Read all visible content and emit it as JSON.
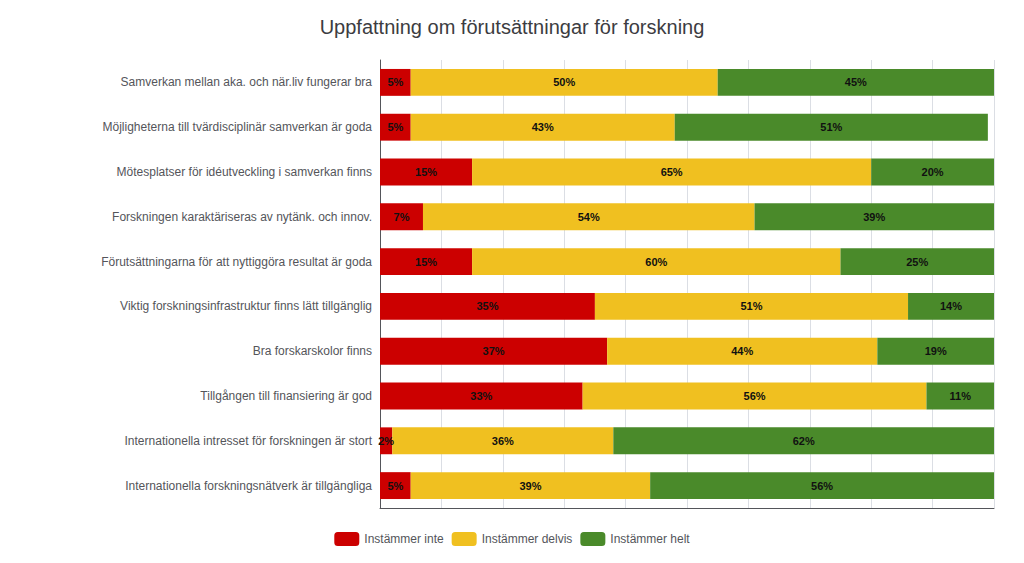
{
  "chart_data": {
    "type": "bar",
    "orientation": "horizontal",
    "stacked": true,
    "title": "Uppfattning om förutsättningar för forskning",
    "categories": [
      "Internationella forskningsnätverk är tillgängliga",
      "Internationella intresset för forskningen är stort",
      "Tillgången till finansiering är god",
      "Bra forskarskolor finns",
      "Viktig forskningsinfrastruktur finns lätt tillgänglig",
      "Förutsättningarna för att nyttiggöra resultat är goda",
      "Forskningen karaktäriseras av nytänk. och innov.",
      "Mötesplatser för idéutveckling i samverkan finns",
      "Möjligheterna till tvärdisciplinär samverkan är goda",
      "Samverkan mellan aka. och när.liv fungerar bra"
    ],
    "series": [
      {
        "name": "Instämmer inte",
        "color": "#cc0000",
        "values": [
          5,
          2,
          33,
          37,
          35,
          15,
          7,
          15,
          5,
          5
        ],
        "value_labels": [
          "5%",
          "2%",
          "33%",
          "37%",
          "35%",
          "15%",
          "7%",
          "15%",
          "5%",
          "5%"
        ]
      },
      {
        "name": "Instämmer delvis",
        "color": "#f0c020",
        "values": [
          39,
          36,
          56,
          44,
          51,
          60,
          54,
          65,
          43,
          50
        ],
        "value_labels": [
          "39%",
          "36%",
          "56%",
          "44%",
          "51%",
          "60%",
          "54%",
          "65%",
          "43%",
          "50%"
        ]
      },
      {
        "name": "Instämmer helt",
        "color": "#4a8a2a",
        "values": [
          56,
          62,
          11,
          19,
          14,
          25,
          39,
          20,
          51,
          45
        ],
        "value_labels": [
          "56%",
          "62%",
          "11%",
          "19%",
          "14%",
          "25%",
          "39%",
          "20%",
          "51%",
          "45%"
        ]
      }
    ],
    "xlim": [
      0,
      100
    ],
    "xticks": [
      0,
      10,
      20,
      30,
      40,
      50,
      60,
      70,
      80,
      90,
      100
    ],
    "grid": true,
    "legend": "bottom",
    "data_labels": true,
    "tick_labels": "y"
  }
}
